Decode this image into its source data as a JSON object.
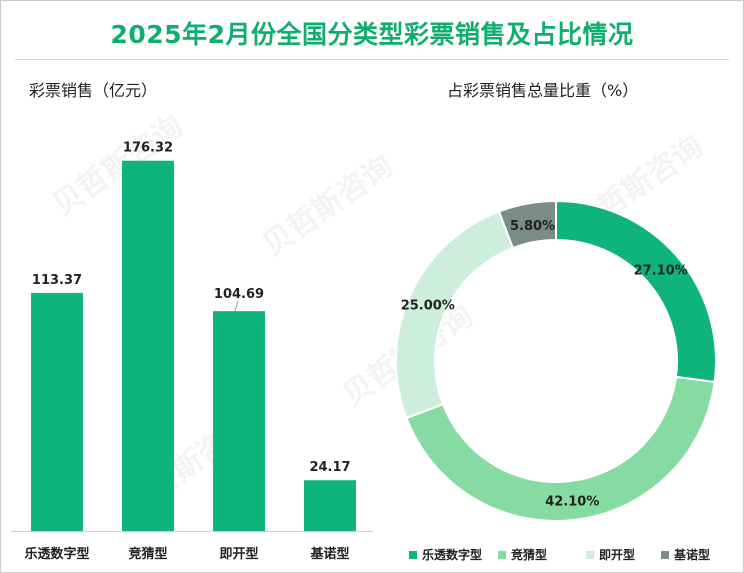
{
  "title": "2025年2月份全国分类型彩票销售及占比情况",
  "colors": {
    "title": "#0fae6f",
    "bar": "#0fb47a",
    "slices": [
      "#0fb47a",
      "#86dba3",
      "#cdeedd",
      "#7a8b88"
    ]
  },
  "chart_data": [
    {
      "type": "bar",
      "title": "彩票销售（亿元）",
      "categories": [
        "乐透数字型",
        "竞猜型",
        "即开型",
        "基诺型"
      ],
      "values": [
        113.37,
        176.32,
        104.69,
        24.17
      ],
      "value_labels": [
        "113.37",
        "176.32",
        "104.69",
        "24.17"
      ],
      "ylim": [
        0,
        200
      ],
      "xlabel": "",
      "ylabel": ""
    },
    {
      "type": "pie",
      "title": "占彩票销售总量比重（%）",
      "labels": [
        "乐透数字型",
        "竞猜型",
        "即开型",
        "基诺型"
      ],
      "values": [
        27.1,
        42.1,
        25.0,
        5.8
      ],
      "value_labels": [
        "27.10%",
        "42.10%",
        "25.00%",
        "5.80%"
      ],
      "legend": "bottom"
    }
  ]
}
